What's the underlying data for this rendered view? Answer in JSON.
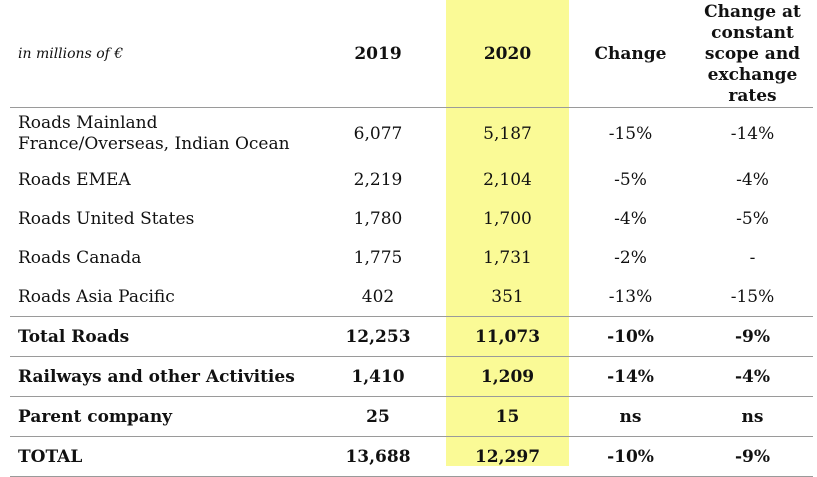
{
  "header": {
    "unit": "in millions of €",
    "col_2019": "2019",
    "col_2020": "2020",
    "col_change": "Change",
    "col_constant": "Change at constant scope and exchange rates"
  },
  "rows": [
    {
      "label": "Roads Mainland France/Overseas, Indian Ocean",
      "y2019": "6,077",
      "y2020": "5,187",
      "change": "-15%",
      "constant": "-14%"
    },
    {
      "label": "Roads EMEA",
      "y2019": "2,219",
      "y2020": "2,104",
      "change": "-5%",
      "constant": "-4%"
    },
    {
      "label": "Roads United States",
      "y2019": "1,780",
      "y2020": "1,700",
      "change": "-4%",
      "constant": "-5%"
    },
    {
      "label": "Roads Canada",
      "y2019": "1,775",
      "y2020": "1,731",
      "change": "-2%",
      "constant": "-"
    },
    {
      "label": "Roads Asia Pacific",
      "y2019": "402",
      "y2020": "351",
      "change": "-13%",
      "constant": "-15%"
    },
    {
      "label": "Total Roads",
      "y2019": "12,253",
      "y2020": "11,073",
      "change": "-10%",
      "constant": "-9%"
    },
    {
      "label": "Railways and other Activities",
      "y2019": "1,410",
      "y2020": "1,209",
      "change": "-14%",
      "constant": "-4%"
    },
    {
      "label": "Parent company",
      "y2019": "25",
      "y2020": "15",
      "change": "ns",
      "constant": "ns"
    },
    {
      "label": "TOTAL",
      "y2019": "13,688",
      "y2020": "12,297",
      "change": "-10%",
      "constant": "-9%"
    }
  ],
  "colors": {
    "highlight_2020": "#fafa96",
    "rule": "#9a9a9a"
  }
}
